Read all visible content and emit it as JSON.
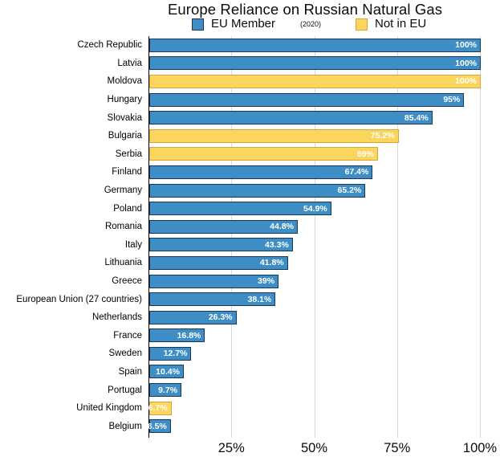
{
  "chart_data": {
    "type": "bar",
    "orientation": "horizontal",
    "title": "Europe Reliance on Russian Natural Gas",
    "subtitle": "(2020)",
    "legend": [
      {
        "label": "EU Member",
        "color": "#3E8EC5",
        "border": "#16375B"
      },
      {
        "label": "Not in EU",
        "color": "#FBD65F",
        "border": "#D9A43B"
      }
    ],
    "xlim": [
      0,
      100
    ],
    "grid": true,
    "x_ticks": [
      {
        "value": 25,
        "label": "25%"
      },
      {
        "value": 50,
        "label": "50%"
      },
      {
        "value": 75,
        "label": "75%"
      },
      {
        "value": 100,
        "label": "100%"
      }
    ],
    "bars": [
      {
        "country": "Czech Republic",
        "value": 100,
        "label": "100%",
        "group": "EU Member"
      },
      {
        "country": "Latvia",
        "value": 100,
        "label": "100%",
        "group": "EU Member"
      },
      {
        "country": "Moldova",
        "value": 100,
        "label": "100%",
        "group": "Not in EU"
      },
      {
        "country": "Hungary",
        "value": 95,
        "label": "95%",
        "group": "EU Member"
      },
      {
        "country": "Slovakia",
        "value": 85.4,
        "label": "85.4%",
        "group": "EU Member"
      },
      {
        "country": "Bulgaria",
        "value": 75.2,
        "label": "75.2%",
        "group": "Not in EU"
      },
      {
        "country": "Serbia",
        "value": 69,
        "label": "69%",
        "group": "Not in EU"
      },
      {
        "country": "Finland",
        "value": 67.4,
        "label": "67.4%",
        "group": "EU Member"
      },
      {
        "country": "Germany",
        "value": 65.2,
        "label": "65.2%",
        "group": "EU Member"
      },
      {
        "country": "Poland",
        "value": 54.9,
        "label": "54.9%",
        "group": "EU Member"
      },
      {
        "country": "Romania",
        "value": 44.8,
        "label": "44.8%",
        "group": "EU Member"
      },
      {
        "country": "Italy",
        "value": 43.3,
        "label": "43.3%",
        "group": "EU Member"
      },
      {
        "country": "Lithuania",
        "value": 41.8,
        "label": "41.8%",
        "group": "EU Member"
      },
      {
        "country": "Greece",
        "value": 39,
        "label": "39%",
        "group": "EU Member"
      },
      {
        "country": "European Union (27 countries)",
        "value": 38.1,
        "label": "38.1%",
        "group": "EU Member"
      },
      {
        "country": "Netherlands",
        "value": 26.3,
        "label": "26.3%",
        "group": "EU Member"
      },
      {
        "country": "France",
        "value": 16.8,
        "label": "16.8%",
        "group": "EU Member"
      },
      {
        "country": "Sweden",
        "value": 12.7,
        "label": "12.7%",
        "group": "EU Member"
      },
      {
        "country": "Spain",
        "value": 10.4,
        "label": "10.4%",
        "group": "EU Member"
      },
      {
        "country": "Portugal",
        "value": 9.7,
        "label": "9.7%",
        "group": "EU Member"
      },
      {
        "country": "United Kingdom",
        "value": 6.7,
        "label": "6.7%",
        "group": "Not in EU"
      },
      {
        "country": "Belgium",
        "value": 6.5,
        "label": "6.5%",
        "group": "EU Member"
      }
    ],
    "colors": {
      "axis": "#000000",
      "gridline": "#D9D9D9",
      "value_label": "#FFFFFF",
      "text": "#000000",
      "background": "#FFFFFF"
    }
  }
}
